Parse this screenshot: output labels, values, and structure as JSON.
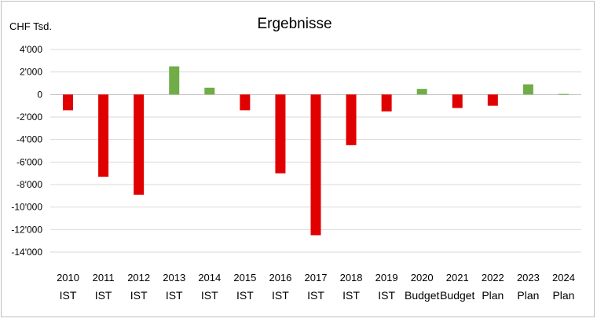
{
  "chart_data": {
    "type": "bar",
    "title": "Ergebnisse",
    "ylabel": "CHF Tsd.",
    "xlabel": "",
    "ylim": [
      -14000,
      4000
    ],
    "yticks": [
      4000,
      2000,
      0,
      -2000,
      -4000,
      -6000,
      -8000,
      -10000,
      -12000,
      -14000
    ],
    "ytick_labels": [
      "4'000",
      "2'000",
      "0",
      "-2'000",
      "-4'000",
      "-6'000",
      "-8'000",
      "-10'000",
      "-12'000",
      "-14'000"
    ],
    "grid": true,
    "legend": "none",
    "categories": [
      {
        "year": "2010",
        "kind": "IST"
      },
      {
        "year": "2011",
        "kind": "IST"
      },
      {
        "year": "2012",
        "kind": "IST"
      },
      {
        "year": "2013",
        "kind": "IST"
      },
      {
        "year": "2014",
        "kind": "IST"
      },
      {
        "year": "2015",
        "kind": "IST"
      },
      {
        "year": "2016",
        "kind": "IST"
      },
      {
        "year": "2017",
        "kind": "IST"
      },
      {
        "year": "2018",
        "kind": "IST"
      },
      {
        "year": "2019",
        "kind": "IST"
      },
      {
        "year": "2020",
        "kind": "Budget"
      },
      {
        "year": "2021",
        "kind": "Budget"
      },
      {
        "year": "2022",
        "kind": "Plan"
      },
      {
        "year": "2023",
        "kind": "Plan"
      },
      {
        "year": "2024",
        "kind": "Plan"
      }
    ],
    "values": [
      -1400,
      -7300,
      -8900,
      2500,
      600,
      -1400,
      -7000,
      -12500,
      -4500,
      -1500,
      500,
      -1200,
      -1000,
      900,
      50
    ],
    "colors": {
      "positive": "#70ad47",
      "negative": "#e00000",
      "grid": "#d9d9d9",
      "axis": "#bfbfbf"
    }
  }
}
